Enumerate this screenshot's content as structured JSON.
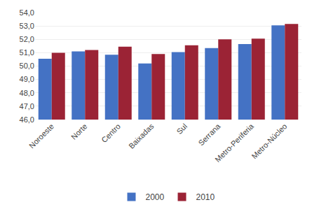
{
  "chart_data": {
    "type": "bar",
    "categories": [
      "Noroeste",
      "Norte",
      "Centro",
      "Baixadas",
      "Sul",
      "Serrana",
      "Metro-Periferia",
      "Metro-Núcleo"
    ],
    "series": [
      {
        "name": "2000",
        "color": "#4472C4",
        "values": [
          50.55,
          51.1,
          50.85,
          50.2,
          51.05,
          51.35,
          51.65,
          53.05
        ]
      },
      {
        "name": "2010",
        "color": "#9B2335",
        "values": [
          51.0,
          51.2,
          51.45,
          50.9,
          51.55,
          52.0,
          52.05,
          53.15
        ]
      }
    ],
    "ylim": [
      46.0,
      54.0
    ],
    "yticks": [
      {
        "value": 46.0,
        "label": "46,0"
      },
      {
        "value": 47.0,
        "label": "47,0"
      },
      {
        "value": 48.0,
        "label": "48,0"
      },
      {
        "value": 49.0,
        "label": "49,0"
      },
      {
        "value": 50.0,
        "label": "50,0"
      },
      {
        "value": 51.0,
        "label": "51,0"
      },
      {
        "value": 52.0,
        "label": "52,0"
      },
      {
        "value": 53.0,
        "label": "53,0"
      },
      {
        "value": 54.0,
        "label": "54,0"
      }
    ],
    "grid": true,
    "legend": "bottom"
  }
}
